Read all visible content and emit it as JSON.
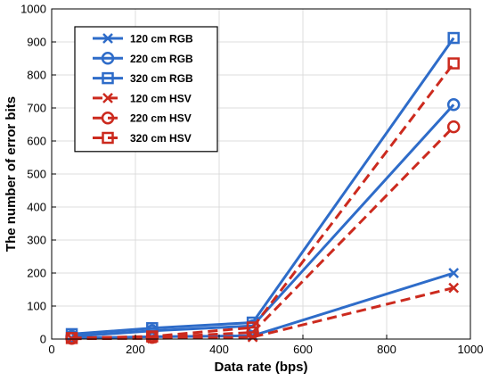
{
  "chart_data": {
    "type": "line",
    "title": "",
    "xlabel": "Data rate (bps)",
    "ylabel": "The number of error bits",
    "xlim": [
      0,
      1000
    ],
    "ylim": [
      0,
      1000
    ],
    "xticks": [
      0,
      200,
      400,
      600,
      800,
      1000
    ],
    "yticks": [
      0,
      100,
      200,
      300,
      400,
      500,
      600,
      700,
      800,
      900,
      1000
    ],
    "grid": true,
    "legend_position": "top-left",
    "x": [
      48,
      240,
      480,
      960
    ],
    "series": [
      {
        "name": "120 cm RGB",
        "values": [
          3,
          7,
          10,
          200
        ],
        "color": "#2e6cc9",
        "linestyle": "solid",
        "marker": "x"
      },
      {
        "name": "220 cm RGB",
        "values": [
          8,
          25,
          40,
          710
        ],
        "color": "#2e6cc9",
        "linestyle": "solid",
        "marker": "circle"
      },
      {
        "name": "320 cm RGB",
        "values": [
          15,
          33,
          50,
          912
        ],
        "color": "#2e6cc9",
        "linestyle": "solid",
        "marker": "square"
      },
      {
        "name": "120 cm HSV",
        "values": [
          1,
          2,
          6,
          155
        ],
        "color": "#cc2a1e",
        "linestyle": "dashed",
        "marker": "x"
      },
      {
        "name": "220 cm HSV",
        "values": [
          2,
          5,
          20,
          643
        ],
        "color": "#cc2a1e",
        "linestyle": "dashed",
        "marker": "circle"
      },
      {
        "name": "320 cm HSV",
        "values": [
          3,
          8,
          35,
          835
        ],
        "color": "#cc2a1e",
        "linestyle": "dashed",
        "marker": "square"
      }
    ]
  }
}
